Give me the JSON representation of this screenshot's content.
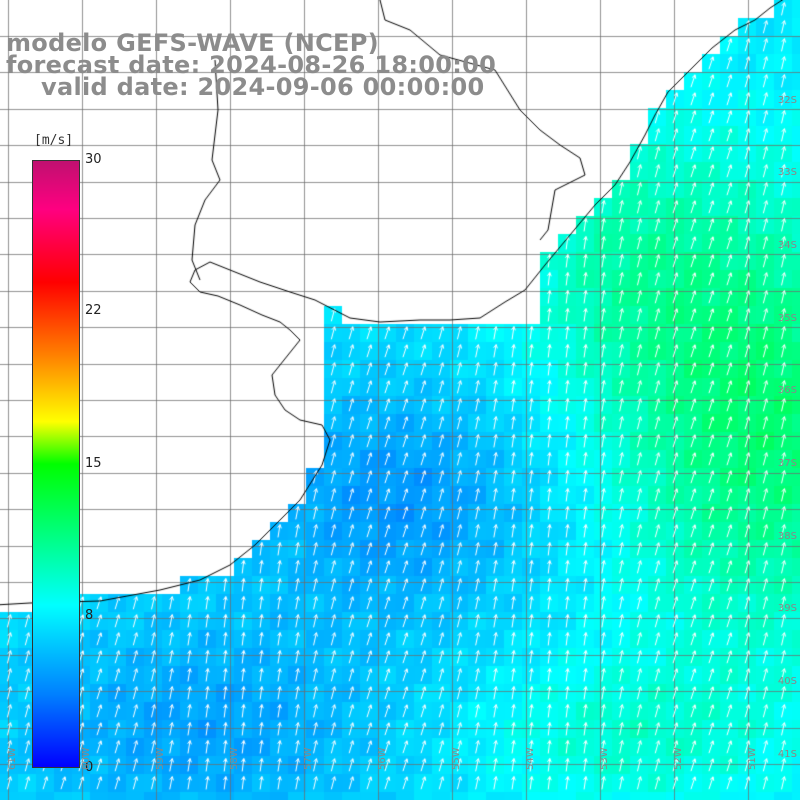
{
  "title": {
    "line1": "modelo GEFS-WAVE (NCEP)",
    "line2": "forecast date: 2024-08-26 18:00:00",
    "line3": "valid date: 2024-09-06 00:00:00"
  },
  "colorbar": {
    "unit": "[m/s]",
    "ticks": [
      "30",
      "22",
      "15",
      "8",
      "0"
    ],
    "tick_values": [
      30,
      22,
      15,
      8,
      0
    ],
    "range": [
      0,
      30
    ],
    "colors": [
      "#0000ff",
      "#0080ff",
      "#00ffff",
      "#00ff00",
      "#ffff00",
      "#ff8000",
      "#ff0000",
      "#c01070"
    ]
  },
  "map": {
    "variable": "wind speed and direction",
    "land_color": "#ffffff",
    "coastline_color": "#000000",
    "grid_color": "#808080",
    "arrow_color": "#ffffff",
    "lat_labels": [
      "32S",
      "33S",
      "34S",
      "35S",
      "36S",
      "37S",
      "38S",
      "39S",
      "40S",
      "41S"
    ],
    "lon_labels": [
      "61W",
      "60W",
      "59W",
      "58W",
      "57W",
      "56W",
      "55W",
      "54W",
      "53W",
      "52W",
      "51W"
    ]
  }
}
